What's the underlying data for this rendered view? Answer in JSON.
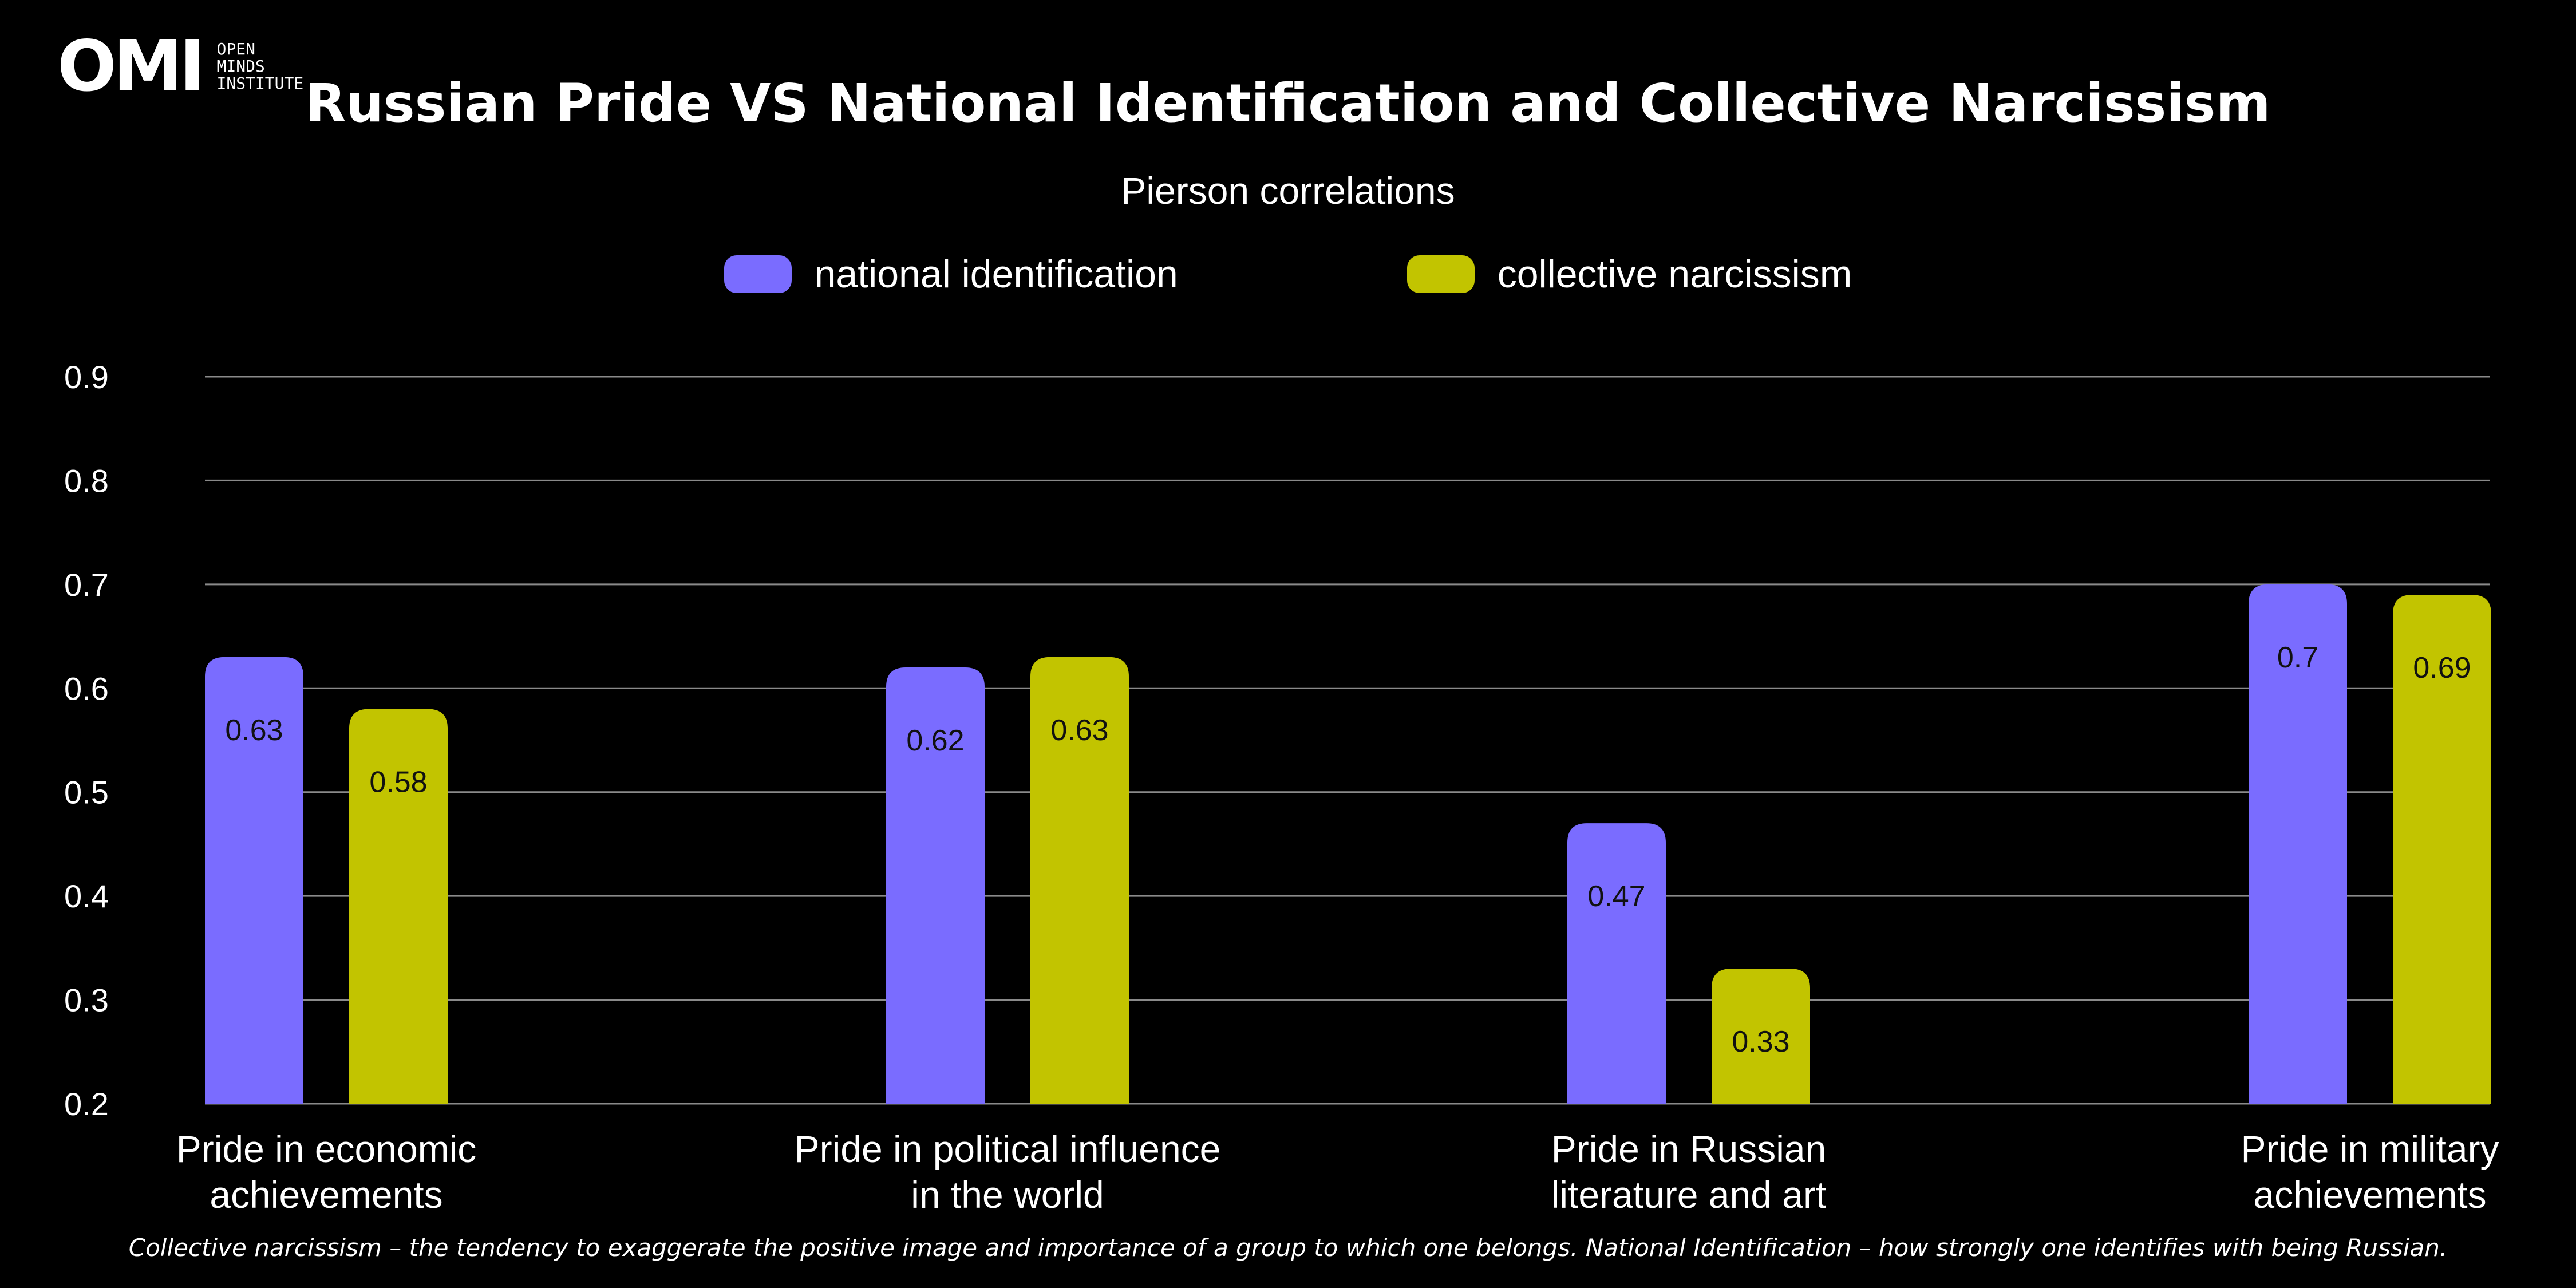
{
  "logo": {
    "mark": "OMI",
    "text": "OPEN\nMINDS\nINSTITUTE"
  },
  "title": "Russian Pride VS National Identification and Collective Narcissism",
  "subtitle": "Pierson correlations",
  "footnote": "Collective narcissism – the tendency to exaggerate the positive image and importance of a group to which one belongs. National Identification – how strongly one identifies with being Russian.",
  "colors": {
    "background": "#000000",
    "national_identification": "#7a6cff",
    "collective_narcissism": "#c2c400",
    "gridline": "#8a8a8a",
    "text": "#ffffff",
    "data_label": "#111111"
  },
  "chart_data": {
    "type": "bar",
    "title": "Russian Pride VS National Identification and Collective Narcissism",
    "subtitle": "Pierson correlations",
    "categories": [
      "Pride in economic achievements",
      "Pride in political influence in the world",
      "Pride in Russian literature and art",
      "Pride in military achievements"
    ],
    "category_lines": [
      [
        "Pride in economic",
        "achievements"
      ],
      [
        "Pride in political influence",
        "in the world"
      ],
      [
        "Pride in Russian",
        "literature and art"
      ],
      [
        "Pride in military",
        "achievements"
      ]
    ],
    "series": [
      {
        "name": "national identification",
        "color": "#7a6cff",
        "values": [
          0.63,
          0.62,
          0.47,
          0.7
        ],
        "labels": [
          "0.63",
          "0.62",
          "0.47",
          "0.7"
        ]
      },
      {
        "name": "collective narcissism",
        "color": "#c2c400",
        "values": [
          0.58,
          0.63,
          0.33,
          0.69
        ],
        "labels": [
          "0.58",
          "0.63",
          "0.33",
          "0.69"
        ]
      }
    ],
    "ylim": [
      0.2,
      0.9
    ],
    "yticks": [
      "0.2",
      "0.3",
      "0.4",
      "0.5",
      "0.6",
      "0.7",
      "0.8",
      "0.9"
    ],
    "xlabel": "",
    "ylabel": "",
    "grid": true,
    "legend_position": "top-center",
    "data_labels": true
  }
}
